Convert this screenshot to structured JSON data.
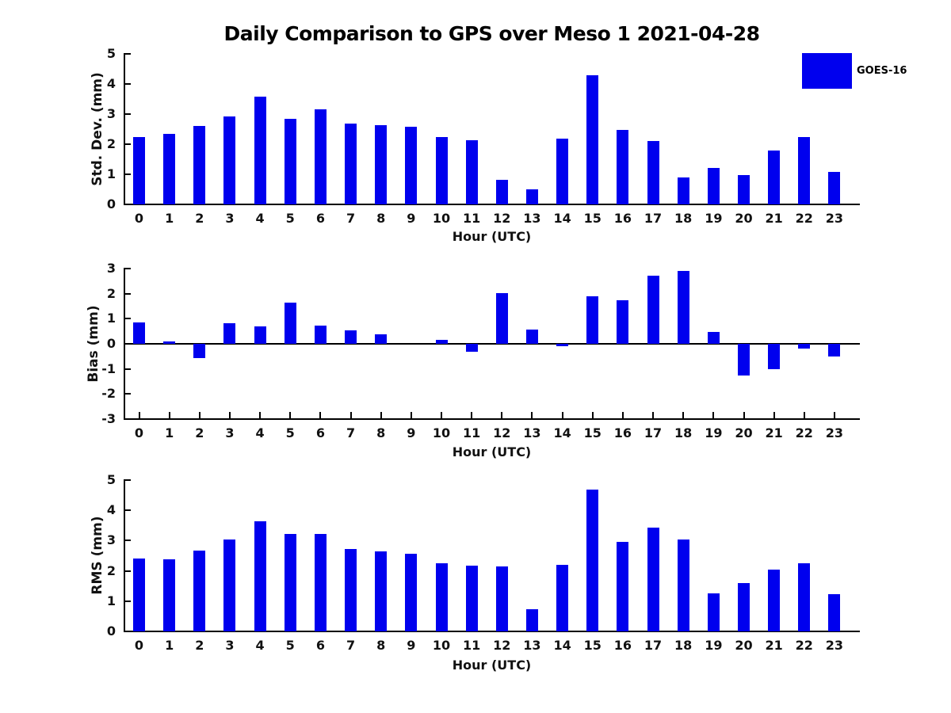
{
  "title": "Daily Comparison to GPS over Meso 1 2021-04-28",
  "legend": {
    "label": "GOES-16",
    "color": "#0000EE"
  },
  "chart_data": [
    {
      "type": "bar",
      "title": "Daily Comparison to GPS over Meso 1 2021-04-28",
      "categories": [
        0,
        1,
        2,
        3,
        4,
        5,
        6,
        7,
        8,
        9,
        10,
        11,
        12,
        13,
        14,
        15,
        16,
        17,
        18,
        19,
        20,
        21,
        22,
        23
      ],
      "series": [
        {
          "name": "GOES-16",
          "values": [
            2.25,
            2.35,
            2.6,
            2.92,
            3.58,
            2.83,
            3.16,
            2.68,
            2.63,
            2.58,
            2.25,
            2.13,
            0.82,
            0.5,
            2.18,
            4.3,
            2.47,
            2.1,
            0.9,
            1.2,
            0.97,
            1.78,
            2.23,
            1.07
          ]
        }
      ],
      "xlabel": "Hour (UTC)",
      "ylabel": "Std. Dev. (mm)",
      "ylim": [
        0,
        5
      ],
      "yticks": [
        0,
        1,
        2,
        3,
        4,
        5
      ],
      "bar_color": "#0000EE",
      "grid": false,
      "legend_position": "outside-upper-right"
    },
    {
      "type": "bar",
      "title": "",
      "categories": [
        0,
        1,
        2,
        3,
        4,
        5,
        6,
        7,
        8,
        9,
        10,
        11,
        12,
        13,
        14,
        15,
        16,
        17,
        18,
        19,
        20,
        21,
        22,
        23
      ],
      "series": [
        {
          "name": "GOES-16",
          "values": [
            0.85,
            0.1,
            -0.58,
            0.82,
            0.68,
            1.65,
            0.73,
            0.55,
            0.37,
            0,
            0.15,
            -0.33,
            2.02,
            0.57,
            -0.1,
            1.9,
            1.73,
            2.72,
            2.9,
            0.47,
            -1.25,
            -1.0,
            -0.2,
            -0.52
          ]
        }
      ],
      "xlabel": "Hour (UTC)",
      "ylabel": "Bias (mm)",
      "ylim": [
        -3,
        3
      ],
      "yticks": [
        3,
        2,
        1,
        0,
        -1,
        -2,
        -3
      ],
      "bar_color": "#0000EE",
      "grid": false,
      "zero_line": true
    },
    {
      "type": "bar",
      "title": "",
      "categories": [
        0,
        1,
        2,
        3,
        4,
        5,
        6,
        7,
        8,
        9,
        10,
        11,
        12,
        13,
        14,
        15,
        16,
        17,
        18,
        19,
        20,
        21,
        22,
        23
      ],
      "series": [
        {
          "name": "GOES-16",
          "values": [
            2.4,
            2.37,
            2.67,
            3.03,
            3.63,
            3.23,
            3.23,
            2.72,
            2.65,
            2.57,
            2.26,
            2.17,
            2.15,
            0.73,
            2.2,
            4.68,
            2.97,
            3.42,
            3.03,
            1.25,
            1.6,
            2.05,
            2.25,
            1.22
          ]
        }
      ],
      "xlabel": "Hour (UTC)",
      "ylabel": "RMS (mm)",
      "ylim": [
        0,
        5
      ],
      "yticks": [
        0,
        1,
        2,
        3,
        4,
        5
      ],
      "bar_color": "#0000EE",
      "grid": false
    }
  ]
}
